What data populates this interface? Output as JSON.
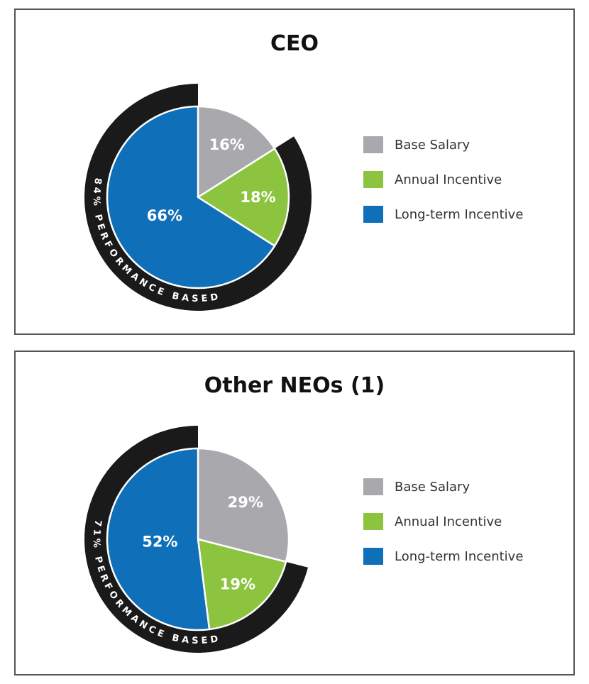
{
  "chart_data": [
    {
      "type": "pie",
      "title": "CEO",
      "categories": [
        "Base Salary",
        "Annual Incentive",
        "Long-term Incentive"
      ],
      "values": [
        16,
        18,
        66
      ],
      "labels": [
        "16%",
        "18%",
        "66%"
      ],
      "colors": [
        "#a9a8ad",
        "#8cc43f",
        "#0f6fb8"
      ],
      "ring_text": "84% PERFORMANCE BASED",
      "ring_color": "#1a1a1a",
      "legend_position": "right"
    },
    {
      "type": "pie",
      "title": "Other NEOs (1)",
      "categories": [
        "Base Salary",
        "Annual Incentive",
        "Long-term Incentive"
      ],
      "values": [
        29,
        19,
        52
      ],
      "labels": [
        "29%",
        "19%",
        "52%"
      ],
      "colors": [
        "#a9a8ad",
        "#8cc43f",
        "#0f6fb8"
      ],
      "ring_text": "71% PERFORMANCE BASED",
      "ring_color": "#1a1a1a",
      "legend_position": "right"
    }
  ]
}
